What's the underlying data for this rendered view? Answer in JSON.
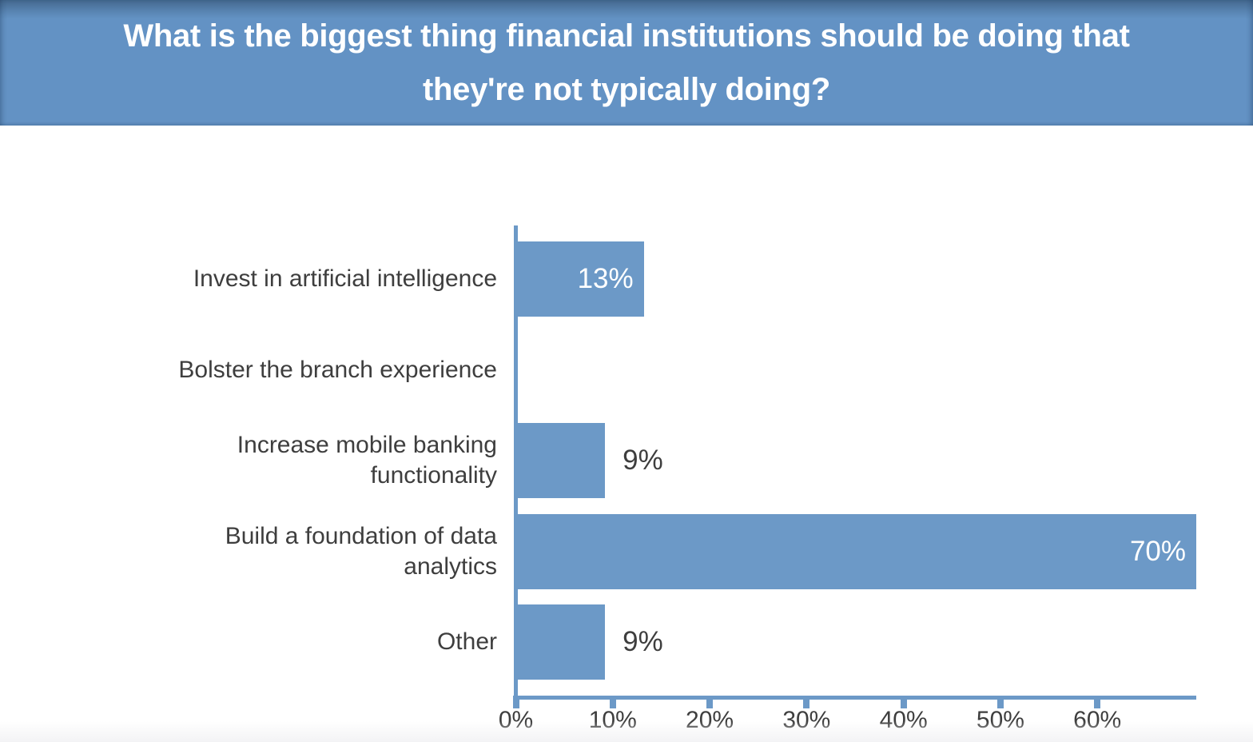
{
  "header": {
    "title": "What is the biggest thing financial institutions should be doing that\nthey're not typically doing?",
    "background_color": "#6392c4",
    "text_color": "#ffffff"
  },
  "chart_data": {
    "type": "bar",
    "orientation": "horizontal",
    "title": "What is the biggest thing financial institutions should be doing that they're not typically doing?",
    "categories": [
      "Invest in artificial intelligence",
      "Bolster the branch experience",
      "Increase mobile banking\nfunctionality",
      "Build a foundation of data\nanalytics",
      "Other"
    ],
    "values": [
      13,
      0,
      9,
      70,
      9
    ],
    "value_labels": [
      "13%",
      "",
      "9%",
      "70%",
      "9%"
    ],
    "value_label_positions": [
      "inside",
      "none",
      "outside",
      "inside",
      "outside"
    ],
    "xlim": [
      0,
      70
    ],
    "x_ticks": [
      {
        "value": 0,
        "label": "0%"
      },
      {
        "value": 10,
        "label": "10%"
      },
      {
        "value": 20,
        "label": "20%"
      },
      {
        "value": 30,
        "label": "30%"
      },
      {
        "value": 40,
        "label": "40%"
      },
      {
        "value": 50,
        "label": "50%"
      },
      {
        "value": 60,
        "label": "60%"
      }
    ],
    "xlabel": "",
    "ylabel": "",
    "grid": false,
    "legend": false,
    "bar_color": "#6c99c7",
    "axis_color": "#6c99c7",
    "text_color": "#3e3e3e",
    "value_label_inside_color": "#ffffff"
  }
}
